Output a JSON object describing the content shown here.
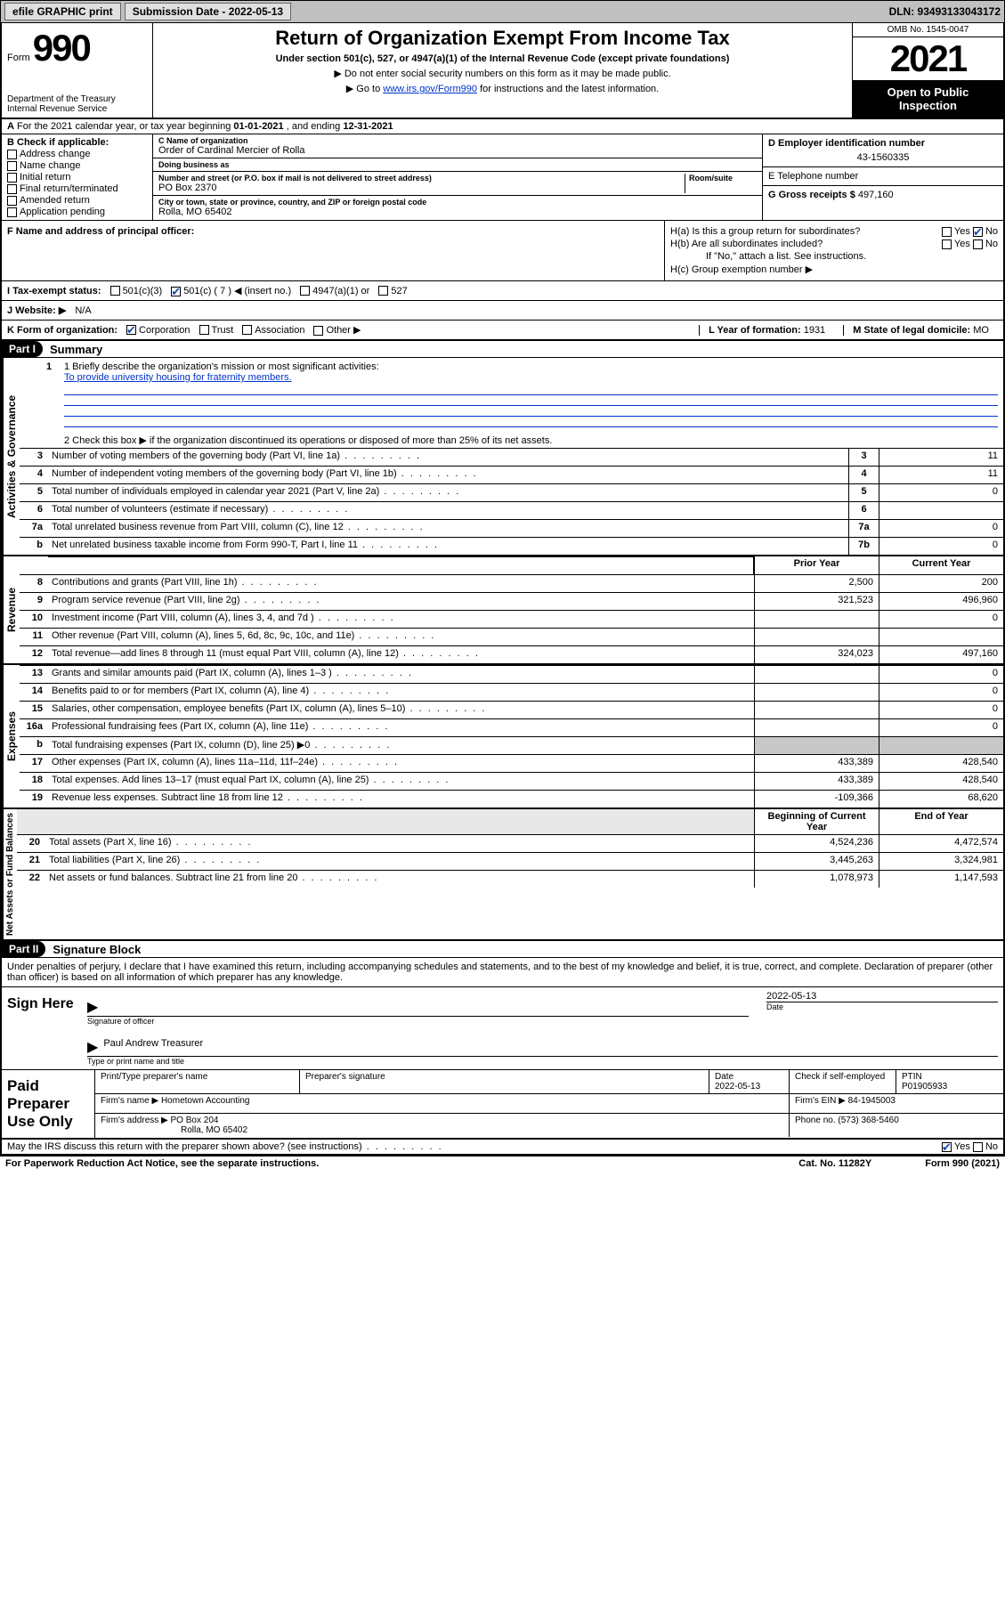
{
  "topbar": {
    "efile_label": "efile GRAPHIC print",
    "submission_label": "Submission Date - 2022-05-13",
    "dln_label": "DLN: 93493133043172"
  },
  "header": {
    "form_prefix": "Form",
    "form_number": "990",
    "title": "Return of Organization Exempt From Income Tax",
    "subtitle": "Under section 501(c), 527, or 4947(a)(1) of the Internal Revenue Code (except private foundations)",
    "note1": "▶ Do not enter social security numbers on this form as it may be made public.",
    "note2_pre": "▶ Go to ",
    "note2_link": "www.irs.gov/Form990",
    "note2_post": " for instructions and the latest information.",
    "dept": "Department of the Treasury",
    "irs": "Internal Revenue Service",
    "omb": "OMB No. 1545-0047",
    "year": "2021",
    "open1": "Open to Public",
    "open2": "Inspection"
  },
  "row_a": {
    "prefix": "A",
    "text_pre": " For the 2021 calendar year, or tax year beginning ",
    "begin": "01-01-2021",
    "mid": " , and ending ",
    "end": "12-31-2021"
  },
  "col_b": {
    "title": "B Check if applicable:",
    "items": [
      "Address change",
      "Name change",
      "Initial return",
      "Final return/terminated",
      "Amended return",
      "Application pending"
    ]
  },
  "col_c": {
    "name_lbl": "C Name of organization",
    "name": "Order of Cardinal Mercier of Rolla",
    "dba_lbl": "Doing business as",
    "dba": "",
    "addr_lbl": "Number and street (or P.O. box if mail is not delivered to street address)",
    "room_lbl": "Room/suite",
    "addr": "PO Box 2370",
    "city_lbl": "City or town, state or province, country, and ZIP or foreign postal code",
    "city": "Rolla, MO  65402"
  },
  "col_de": {
    "d_lbl": "D Employer identification number",
    "d_val": "43-1560335",
    "e_lbl": "E Telephone number",
    "e_val": "",
    "g_lbl": "G Gross receipts $ ",
    "g_val": "497,160"
  },
  "sec_f": {
    "label": "F Name and address of principal officer:",
    "val": ""
  },
  "sec_h": {
    "ha": "H(a)  Is this a group return for subordinates?",
    "hb": "H(b)  Are all subordinates included?",
    "hb_note": "If \"No,\" attach a list. See instructions.",
    "hc": "H(c)  Group exemption number ▶",
    "yes": "Yes",
    "no": "No"
  },
  "row_i": {
    "label": "I    Tax-exempt status:",
    "c501c3": "501(c)(3)",
    "c501c": "501(c) ( 7 ) ◀ (insert no.)",
    "c4947": "4947(a)(1) or",
    "c527": "527"
  },
  "row_j": {
    "label": "J    Website: ▶",
    "val": " N/A"
  },
  "row_k": {
    "label": "K Form of organization:",
    "corp": "Corporation",
    "trust": "Trust",
    "assoc": "Association",
    "other": "Other ▶"
  },
  "row_lm": {
    "l_label": "L Year of formation: ",
    "l_val": "1931",
    "m_label": "M State of legal domicile: ",
    "m_val": "MO"
  },
  "part1": {
    "label": "Part I",
    "title": "Summary"
  },
  "summary": {
    "q1_lbl": "1   Briefly describe the organization's mission or most significant activities:",
    "q1_val": "To provide university housing for fraternity members.",
    "q2": "2    Check this box ▶        if the organization discontinued its operations or disposed of more than 25% of its net assets.",
    "rows_ag": [
      {
        "n": "3",
        "d": "Number of voting members of the governing body (Part VI, line 1a)",
        "ln": "3",
        "v": "11"
      },
      {
        "n": "4",
        "d": "Number of independent voting members of the governing body (Part VI, line 1b)",
        "ln": "4",
        "v": "11"
      },
      {
        "n": "5",
        "d": "Total number of individuals employed in calendar year 2021 (Part V, line 2a)",
        "ln": "5",
        "v": "0"
      },
      {
        "n": "6",
        "d": "Total number of volunteers (estimate if necessary)",
        "ln": "6",
        "v": ""
      },
      {
        "n": "7a",
        "d": "Total unrelated business revenue from Part VIII, column (C), line 12",
        "ln": "7a",
        "v": "0"
      },
      {
        "n": "b",
        "d": "Net unrelated business taxable income from Form 990-T, Part I, line 11",
        "ln": "7b",
        "v": "0"
      }
    ],
    "hdr_prior": "Prior Year",
    "hdr_curr": "Current Year",
    "rows_rev": [
      {
        "n": "8",
        "d": "Contributions and grants (Part VIII, line 1h)",
        "p": "2,500",
        "c": "200"
      },
      {
        "n": "9",
        "d": "Program service revenue (Part VIII, line 2g)",
        "p": "321,523",
        "c": "496,960"
      },
      {
        "n": "10",
        "d": "Investment income (Part VIII, column (A), lines 3, 4, and 7d )",
        "p": "",
        "c": "0"
      },
      {
        "n": "11",
        "d": "Other revenue (Part VIII, column (A), lines 5, 6d, 8c, 9c, 10c, and 11e)",
        "p": "",
        "c": ""
      },
      {
        "n": "12",
        "d": "Total revenue—add lines 8 through 11 (must equal Part VIII, column (A), line 12)",
        "p": "324,023",
        "c": "497,160"
      }
    ],
    "rows_exp": [
      {
        "n": "13",
        "d": "Grants and similar amounts paid (Part IX, column (A), lines 1–3 )",
        "p": "",
        "c": "0"
      },
      {
        "n": "14",
        "d": "Benefits paid to or for members (Part IX, column (A), line 4)",
        "p": "",
        "c": "0"
      },
      {
        "n": "15",
        "d": "Salaries, other compensation, employee benefits (Part IX, column (A), lines 5–10)",
        "p": "",
        "c": "0"
      },
      {
        "n": "16a",
        "d": "Professional fundraising fees (Part IX, column (A), line 11e)",
        "p": "",
        "c": "0"
      },
      {
        "n": "b",
        "d": "Total fundraising expenses (Part IX, column (D), line 25) ▶0",
        "p": "shade",
        "c": "shade"
      },
      {
        "n": "17",
        "d": "Other expenses (Part IX, column (A), lines 11a–11d, 11f–24e)",
        "p": "433,389",
        "c": "428,540"
      },
      {
        "n": "18",
        "d": "Total expenses. Add lines 13–17 (must equal Part IX, column (A), line 25)",
        "p": "433,389",
        "c": "428,540"
      },
      {
        "n": "19",
        "d": "Revenue less expenses. Subtract line 18 from line 12",
        "p": "-109,366",
        "c": "68,620"
      }
    ],
    "hdr_beg": "Beginning of Current Year",
    "hdr_end": "End of Year",
    "rows_na": [
      {
        "n": "20",
        "d": "Total assets (Part X, line 16)",
        "p": "4,524,236",
        "c": "4,472,574"
      },
      {
        "n": "21",
        "d": "Total liabilities (Part X, line 26)",
        "p": "3,445,263",
        "c": "3,324,981"
      },
      {
        "n": "22",
        "d": "Net assets or fund balances. Subtract line 21 from line 20",
        "p": "1,078,973",
        "c": "1,147,593"
      }
    ],
    "vtab_ag": "Activities & Governance",
    "vtab_rev": "Revenue",
    "vtab_exp": "Expenses",
    "vtab_na": "Net Assets or Fund Balances"
  },
  "part2": {
    "label": "Part II",
    "title": "Signature Block"
  },
  "sig": {
    "decl": "Under penalties of perjury, I declare that I have examined this return, including accompanying schedules and statements, and to the best of my knowledge and belief, it is true, correct, and complete. Declaration of preparer (other than officer) is based on all information of which preparer has any knowledge.",
    "sign_here": "Sign Here",
    "sig_officer_lbl": "Signature of officer",
    "date_lbl": "Date",
    "date_val": "2022-05-13",
    "name_val": "Paul Andrew  Treasurer",
    "name_lbl": "Type or print name and title",
    "paid_lbl": "Paid Preparer Use Only",
    "pt_name_lbl": "Print/Type preparer's name",
    "pt_sig_lbl": "Preparer's signature",
    "pt_date_lbl": "Date",
    "pt_date_val": "2022-05-13",
    "pt_check_lbl": "Check         if self-employed",
    "ptin_lbl": "PTIN",
    "ptin_val": "P01905933",
    "firm_name_lbl": "Firm's name      ▶ ",
    "firm_name": "Hometown Accounting",
    "firm_ein_lbl": "Firm's EIN ▶ ",
    "firm_ein": "84-1945003",
    "firm_addr_lbl": "Firm's address ▶ ",
    "firm_addr1": "PO Box 204",
    "firm_addr2": "Rolla, MO  65402",
    "phone_lbl": "Phone no. ",
    "phone": "(573) 368-5460"
  },
  "footer": {
    "q": "May the IRS discuss this return with the preparer shown above? (see instructions)",
    "yes": "Yes",
    "no": "No",
    "pra": "For Paperwork Reduction Act Notice, see the separate instructions.",
    "cat": "Cat. No. 11282Y",
    "form": "Form 990 (2021)"
  },
  "colors": {
    "link": "#0033cc",
    "check": "#1a4ba8",
    "shade": "#c8c8c8"
  }
}
